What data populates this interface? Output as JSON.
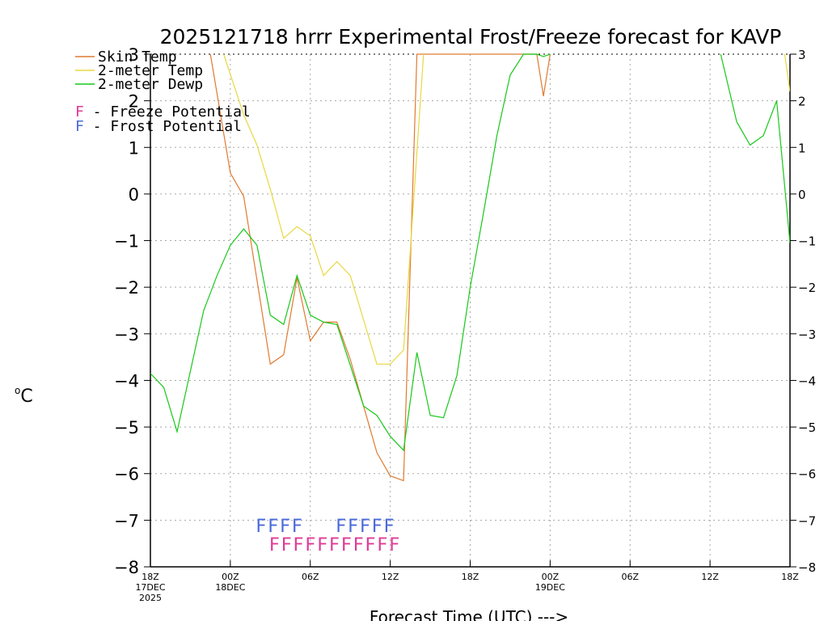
{
  "chart_data": {
    "type": "line",
    "title": "2025121718 hrrr Experimental Frost/Freeze forecast for KAVP",
    "xlabel": "Forecast Time (UTC) --->",
    "ylabel": "°C",
    "ylabel_base": "o",
    "ylabel_unit": "C",
    "xlim": [
      0,
      48
    ],
    "ylim": [
      -8,
      3
    ],
    "yticks": [
      3,
      2,
      1,
      0,
      -1,
      -2,
      -3,
      -4,
      -5,
      -6,
      -7,
      -8
    ],
    "ytick_labels": [
      "3",
      "2",
      "1",
      "0",
      "−1",
      "−2",
      "−3",
      "−4",
      "−5",
      "−6",
      "−7",
      "−8"
    ],
    "xticks": [
      {
        "x": 0,
        "lines": [
          "18Z",
          "17DEC",
          "2025"
        ]
      },
      {
        "x": 6,
        "lines": [
          "00Z",
          "18DEC"
        ]
      },
      {
        "x": 12,
        "lines": [
          "06Z"
        ]
      },
      {
        "x": 18,
        "lines": [
          "12Z"
        ]
      },
      {
        "x": 24,
        "lines": [
          "18Z"
        ]
      },
      {
        "x": 30,
        "lines": [
          "00Z",
          "19DEC"
        ]
      },
      {
        "x": 36,
        "lines": [
          "06Z"
        ]
      },
      {
        "x": 42,
        "lines": [
          "12Z"
        ]
      },
      {
        "x": 48,
        "lines": [
          "18Z"
        ]
      }
    ],
    "grid": true,
    "legend": [
      {
        "label": "Skin Temp",
        "color": "#e07a30"
      },
      {
        "label": "2-meter Temp",
        "color": "#e8d840"
      },
      {
        "label": "2-meter Dewp",
        "color": "#18c818"
      }
    ],
    "potential_legend": [
      {
        "letter": "F",
        "text": " - Freeze Potential",
        "color": "#e03a96"
      },
      {
        "letter": "F",
        "text": " - Frost Potential",
        "color": "#4a6ad8"
      }
    ],
    "series": [
      {
        "name": "Skin Temp",
        "color": "#e07a30",
        "x": [
          4.5,
          6,
          7,
          9,
          10,
          11,
          12,
          13,
          14,
          15,
          17,
          18,
          19,
          20,
          28.8,
          29,
          29.5,
          30
        ],
        "y": [
          3.0,
          0.45,
          -0.05,
          -3.65,
          -3.45,
          -1.8,
          -3.15,
          -2.75,
          -2.75,
          -3.55,
          -5.55,
          -6.05,
          -6.15,
          3.0,
          3.0,
          3.0,
          2.1,
          3.0
        ]
      },
      {
        "name": "2-meter Temp",
        "color": "#e8d840",
        "x": [
          5.5,
          7,
          8,
          9,
          10,
          11,
          12,
          13,
          14,
          15,
          17,
          18,
          19,
          20.5
        ],
        "y": [
          3.0,
          1.7,
          1.05,
          0.1,
          -0.95,
          -0.7,
          -0.9,
          -1.75,
          -1.45,
          -1.75,
          -3.65,
          -3.65,
          -3.35,
          3.0
        ]
      },
      {
        "name": "2-meter Dewp",
        "color": "#18c818",
        "x": [
          0,
          1,
          2,
          4,
          5,
          6,
          7,
          8,
          9,
          10,
          11,
          12,
          13,
          14,
          16,
          17,
          18,
          19,
          20,
          21,
          22,
          23,
          24,
          25,
          26,
          27,
          28,
          29,
          29.5,
          30
        ],
        "y": [
          -3.85,
          -4.15,
          -5.1,
          -2.5,
          -1.75,
          -1.1,
          -0.75,
          -1.1,
          -2.6,
          -2.8,
          -1.75,
          -2.6,
          -2.75,
          -2.8,
          -4.55,
          -4.75,
          -5.2,
          -5.5,
          -3.4,
          -4.75,
          -4.8,
          -3.9,
          -2.0,
          -0.4,
          1.25,
          2.55,
          3.0,
          3.0,
          2.95,
          3.0
        ]
      },
      {
        "name": "2-meter Dewp (late)",
        "color": "#18c818",
        "x": [
          42.8,
          44,
          45,
          46,
          47,
          48
        ],
        "y": [
          3.0,
          1.55,
          1.05,
          1.25,
          2.0,
          -1.05
        ]
      },
      {
        "name": "2-meter Temp (late)",
        "color": "#e8d840",
        "x": [
          47.6,
          48
        ],
        "y": [
          3.0,
          2.2
        ]
      }
    ],
    "frost_potential": {
      "color": "#4a6ad8",
      "rows": [
        {
          "text": "FFFF",
          "start_x": 8.3
        },
        {
          "text": "FFFFF",
          "start_x": 14.3
        }
      ]
    },
    "freeze_potential": {
      "color": "#e03a96",
      "rows": [
        {
          "text": "FFFFFFFFFFF",
          "start_x": 9.3
        }
      ]
    }
  }
}
